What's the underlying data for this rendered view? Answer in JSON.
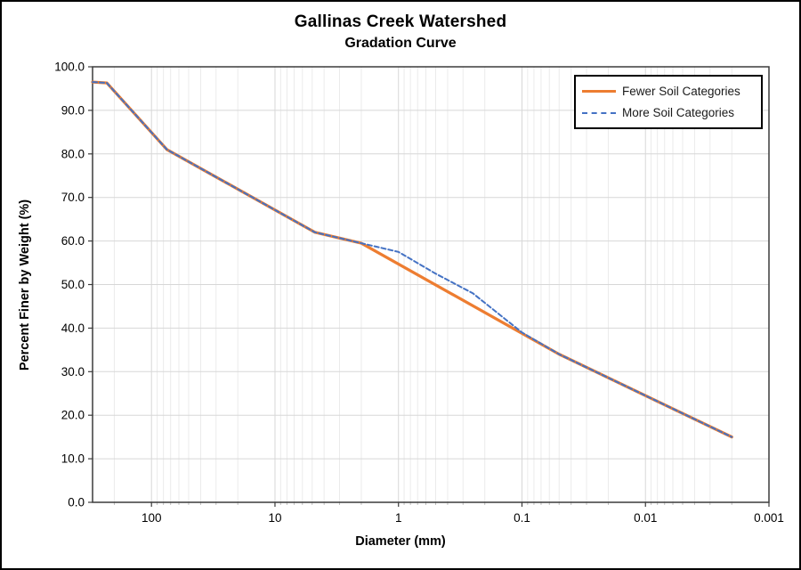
{
  "chart_data": {
    "type": "line",
    "title": "Gallinas Creek Watershed",
    "subtitle": "Gradation Curve",
    "xlabel": "Diameter (mm)",
    "ylabel": "Percent Finer by Weight (%)",
    "x_axis": {
      "scale": "log",
      "reversed": true,
      "min": 0.001,
      "max": 300,
      "tick_values": [
        100,
        10,
        1,
        0.1,
        0.01,
        0.001
      ],
      "tick_labels": [
        "100",
        "10",
        "1",
        "0.1",
        "0.01",
        "0.001"
      ]
    },
    "y_axis": {
      "min": 0,
      "max": 100,
      "tick_step": 10,
      "tick_labels": [
        "0.0",
        "10.0",
        "20.0",
        "30.0",
        "40.0",
        "50.0",
        "60.0",
        "70.0",
        "80.0",
        "90.0",
        "100.0"
      ]
    },
    "grid": {
      "major": true,
      "minor_x": true,
      "major_color": "#D7D7D7",
      "minor_color": "#EBEBEB"
    },
    "axis_color": "#3B3B3B",
    "legend": {
      "position": "top-right",
      "border_color": "#000000"
    },
    "series": [
      {
        "name": "Fewer Soil Categories",
        "color": "#ED7D31",
        "style": "solid",
        "width": 3.25,
        "points": [
          [
            300,
            96.5
          ],
          [
            230,
            96.3
          ],
          [
            75,
            81
          ],
          [
            4.75,
            62
          ],
          [
            2,
            59.5
          ],
          [
            0.05,
            34
          ],
          [
            0.002,
            15
          ]
        ]
      },
      {
        "name": "More Soil Categories",
        "color": "#4472C4",
        "style": "dashed",
        "width": 2,
        "points": [
          [
            300,
            96.5
          ],
          [
            230,
            96.3
          ],
          [
            75,
            81
          ],
          [
            4.75,
            62
          ],
          [
            2,
            59.5
          ],
          [
            1,
            57.5
          ],
          [
            0.5,
            52.5
          ],
          [
            0.25,
            48
          ],
          [
            0.1,
            39
          ],
          [
            0.05,
            34
          ],
          [
            0.002,
            15
          ]
        ]
      }
    ]
  }
}
